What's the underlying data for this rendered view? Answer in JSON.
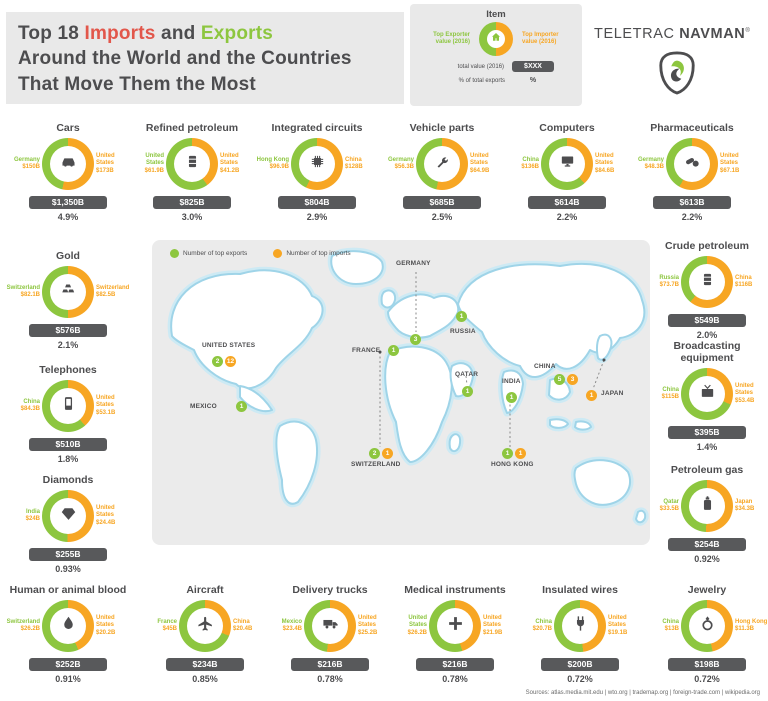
{
  "title": {
    "part_top18": "Top 18 ",
    "part_imports": "Imports",
    "part_and": " and ",
    "part_exports": "Exports",
    "line2": "Around the World and the Countries",
    "line3": "That Move Them the Most"
  },
  "legend": {
    "title": "Item",
    "exporter_label": "Top Exporter value (2016)",
    "importer_label": "Top Importer value (2016)",
    "total_label": "total value (2016)",
    "total_value": "$XXX",
    "percent_label": "% of total exports",
    "percent_value": "%"
  },
  "logo": {
    "part1": "TELETRAC",
    "part2": "NAVMAN",
    "reg": "®"
  },
  "map": {
    "legend_exports": "Number of top exports",
    "legend_imports": "Number of top imports",
    "countries": [
      {
        "name": "UNITED STATES",
        "badges": [
          {
            "type": "exports",
            "count": 2
          },
          {
            "type": "imports",
            "count": 12
          }
        ]
      },
      {
        "name": "MEXICO",
        "badges": [
          {
            "type": "exports",
            "count": 1
          }
        ]
      },
      {
        "name": "GERMANY",
        "badges": [
          {
            "type": "exports",
            "count": 3
          }
        ]
      },
      {
        "name": "FRANCE",
        "badges": [
          {
            "type": "exports",
            "count": 1
          }
        ]
      },
      {
        "name": "RUSSIA",
        "badges": [
          {
            "type": "exports",
            "count": 1
          }
        ]
      },
      {
        "name": "SWITZERLAND",
        "badges": [
          {
            "type": "exports",
            "count": 2
          },
          {
            "type": "imports",
            "count": 1
          }
        ]
      },
      {
        "name": "QATAR",
        "badges": [
          {
            "type": "exports",
            "count": 1
          }
        ]
      },
      {
        "name": "INDIA",
        "badges": [
          {
            "type": "exports",
            "count": 1
          }
        ]
      },
      {
        "name": "CHINA",
        "badges": [
          {
            "type": "exports",
            "count": 5
          },
          {
            "type": "imports",
            "count": 3
          }
        ]
      },
      {
        "name": "HONG KONG",
        "badges": [
          {
            "type": "exports",
            "count": 1
          },
          {
            "type": "imports",
            "count": 1
          }
        ]
      },
      {
        "name": "JAPAN",
        "badges": [
          {
            "type": "imports",
            "count": 1
          }
        ]
      }
    ]
  },
  "items": [
    {
      "name": "Cars",
      "icon": "car-icon",
      "exporter": {
        "country": "Germany",
        "value": "$150B"
      },
      "importer": {
        "country": "United States",
        "value": "$173B"
      },
      "export_b": 150,
      "import_b": 173,
      "total": "$1,350B",
      "percent": "4.9%"
    },
    {
      "name": "Refined petroleum",
      "icon": "oil-barrel-icon",
      "exporter": {
        "country": "United States",
        "value": "$61.9B"
      },
      "importer": {
        "country": "United States",
        "value": "$41.2B"
      },
      "export_b": 61.9,
      "import_b": 41.2,
      "total": "$825B",
      "percent": "3.0%"
    },
    {
      "name": "Integrated circuits",
      "icon": "chip-icon",
      "exporter": {
        "country": "Hong Kong",
        "value": "$96.9B"
      },
      "importer": {
        "country": "China",
        "value": "$128B"
      },
      "export_b": 96.9,
      "import_b": 128,
      "total": "$804B",
      "percent": "2.9%"
    },
    {
      "name": "Vehicle parts",
      "icon": "vehicle-parts-icon",
      "exporter": {
        "country": "Germany",
        "value": "$56.3B"
      },
      "importer": {
        "country": "United States",
        "value": "$64.9B"
      },
      "export_b": 56.3,
      "import_b": 64.9,
      "total": "$685B",
      "percent": "2.5%"
    },
    {
      "name": "Computers",
      "icon": "computer-icon",
      "exporter": {
        "country": "China",
        "value": "$136B"
      },
      "importer": {
        "country": "United States",
        "value": "$84.6B"
      },
      "export_b": 136,
      "import_b": 84.6,
      "total": "$614B",
      "percent": "2.2%"
    },
    {
      "name": "Pharmaceuticals",
      "icon": "pills-icon",
      "exporter": {
        "country": "Germany",
        "value": "$48.3B"
      },
      "importer": {
        "country": "United States",
        "value": "$67.1B"
      },
      "export_b": 48.3,
      "import_b": 67.1,
      "total": "$613B",
      "percent": "2.2%"
    },
    {
      "name": "Gold",
      "icon": "gold-icon",
      "exporter": {
        "country": "Switzerland",
        "value": "$82.1B"
      },
      "importer": {
        "country": "Switzerland",
        "value": "$82.5B"
      },
      "export_b": 82.1,
      "import_b": 82.5,
      "total": "$576B",
      "percent": "2.1%"
    },
    {
      "name": "Crude petroleum",
      "icon": "oil-barrel-icon",
      "exporter": {
        "country": "Russia",
        "value": "$73.7B"
      },
      "importer": {
        "country": "China",
        "value": "$116B"
      },
      "export_b": 73.7,
      "import_b": 116,
      "total": "$549B",
      "percent": "2.0%"
    },
    {
      "name": "Telephones",
      "icon": "phone-icon",
      "exporter": {
        "country": "China",
        "value": "$84.3B"
      },
      "importer": {
        "country": "United States",
        "value": "$53.1B"
      },
      "export_b": 84.3,
      "import_b": 53.1,
      "total": "$510B",
      "percent": "1.8%"
    },
    {
      "name": "Broadcasting equipment",
      "icon": "broadcast-icon",
      "exporter": {
        "country": "China",
        "value": "$115B"
      },
      "importer": {
        "country": "United States",
        "value": "$53.4B"
      },
      "export_b": 115,
      "import_b": 53.4,
      "total": "$395B",
      "percent": "1.4%"
    },
    {
      "name": "Diamonds",
      "icon": "diamond-icon",
      "exporter": {
        "country": "India",
        "value": "$24B"
      },
      "importer": {
        "country": "United States",
        "value": "$24.4B"
      },
      "export_b": 24,
      "import_b": 24.4,
      "total": "$255B",
      "percent": "0.93%"
    },
    {
      "name": "Petroleum gas",
      "icon": "gas-canister-icon",
      "exporter": {
        "country": "Qatar",
        "value": "$33.5B"
      },
      "importer": {
        "country": "Japan",
        "value": "$34.3B"
      },
      "export_b": 33.5,
      "import_b": 34.3,
      "total": "$254B",
      "percent": "0.92%"
    },
    {
      "name": "Human or animal blood",
      "icon": "blood-icon",
      "exporter": {
        "country": "Switzerland",
        "value": "$26.2B"
      },
      "importer": {
        "country": "United States",
        "value": "$20.2B"
      },
      "export_b": 26.2,
      "import_b": 20.2,
      "total": "$252B",
      "percent": "0.91%"
    },
    {
      "name": "Aircraft",
      "icon": "plane-icon",
      "exporter": {
        "country": "France",
        "value": "$45B"
      },
      "importer": {
        "country": "China",
        "value": "$20.4B"
      },
      "export_b": 45,
      "import_b": 20.4,
      "total": "$234B",
      "percent": "0.85%"
    },
    {
      "name": "Delivery trucks",
      "icon": "truck-icon",
      "exporter": {
        "country": "Mexico",
        "value": "$23.4B"
      },
      "importer": {
        "country": "United States",
        "value": "$25.2B"
      },
      "export_b": 23.4,
      "import_b": 25.2,
      "total": "$216B",
      "percent": "0.78%"
    },
    {
      "name": "Medical instruments",
      "icon": "medical-icon",
      "exporter": {
        "country": "United States",
        "value": "$26.2B"
      },
      "importer": {
        "country": "United States",
        "value": "$21.9B"
      },
      "export_b": 26.2,
      "import_b": 21.9,
      "total": "$216B",
      "percent": "0.78%"
    },
    {
      "name": "Insulated wires",
      "icon": "wire-icon",
      "exporter": {
        "country": "China",
        "value": "$20.7B"
      },
      "importer": {
        "country": "United States",
        "value": "$19.1B"
      },
      "export_b": 20.7,
      "import_b": 19.1,
      "total": "$200B",
      "percent": "0.72%"
    },
    {
      "name": "Jewelry",
      "icon": "ring-icon",
      "exporter": {
        "country": "China",
        "value": "$13B"
      },
      "importer": {
        "country": "Hong Kong",
        "value": "$11.3B"
      },
      "export_b": 13,
      "import_b": 11.3,
      "total": "$198B",
      "percent": "0.72%"
    }
  ],
  "chart_data": [
    {
      "type": "pie",
      "title": "Cars",
      "labels": [
        "Germany (top exporter)",
        "United States (top importer)"
      ],
      "values": [
        150,
        173
      ],
      "unit": "billion USD",
      "total": "$1,350B",
      "pct_of_total_exports": "4.9%"
    },
    {
      "type": "pie",
      "title": "Refined petroleum",
      "labels": [
        "United States (top exporter)",
        "United States (top importer)"
      ],
      "values": [
        61.9,
        41.2
      ],
      "unit": "billion USD",
      "total": "$825B",
      "pct_of_total_exports": "3.0%"
    },
    {
      "type": "pie",
      "title": "Integrated circuits",
      "labels": [
        "Hong Kong (top exporter)",
        "China (top importer)"
      ],
      "values": [
        96.9,
        128
      ],
      "unit": "billion USD",
      "total": "$804B",
      "pct_of_total_exports": "2.9%"
    },
    {
      "type": "pie",
      "title": "Vehicle parts",
      "labels": [
        "Germany (top exporter)",
        "United States (top importer)"
      ],
      "values": [
        56.3,
        64.9
      ],
      "unit": "billion USD",
      "total": "$685B",
      "pct_of_total_exports": "2.5%"
    },
    {
      "type": "pie",
      "title": "Computers",
      "labels": [
        "China (top exporter)",
        "United States (top importer)"
      ],
      "values": [
        136,
        84.6
      ],
      "unit": "billion USD",
      "total": "$614B",
      "pct_of_total_exports": "2.2%"
    },
    {
      "type": "pie",
      "title": "Pharmaceuticals",
      "labels": [
        "Germany (top exporter)",
        "United States (top importer)"
      ],
      "values": [
        48.3,
        67.1
      ],
      "unit": "billion USD",
      "total": "$613B",
      "pct_of_total_exports": "2.2%"
    },
    {
      "type": "pie",
      "title": "Gold",
      "labels": [
        "Switzerland (top exporter)",
        "Switzerland (top importer)"
      ],
      "values": [
        82.1,
        82.5
      ],
      "unit": "billion USD",
      "total": "$576B",
      "pct_of_total_exports": "2.1%"
    },
    {
      "type": "pie",
      "title": "Crude petroleum",
      "labels": [
        "Russia (top exporter)",
        "China (top importer)"
      ],
      "values": [
        73.7,
        116
      ],
      "unit": "billion USD",
      "total": "$549B",
      "pct_of_total_exports": "2.0%"
    },
    {
      "type": "pie",
      "title": "Telephones",
      "labels": [
        "China (top exporter)",
        "United States (top importer)"
      ],
      "values": [
        84.3,
        53.1
      ],
      "unit": "billion USD",
      "total": "$510B",
      "pct_of_total_exports": "1.8%"
    },
    {
      "type": "pie",
      "title": "Broadcasting equipment",
      "labels": [
        "China (top exporter)",
        "United States (top importer)"
      ],
      "values": [
        115,
        53.4
      ],
      "unit": "billion USD",
      "total": "$395B",
      "pct_of_total_exports": "1.4%"
    },
    {
      "type": "pie",
      "title": "Diamonds",
      "labels": [
        "India (top exporter)",
        "United States (top importer)"
      ],
      "values": [
        24,
        24.4
      ],
      "unit": "billion USD",
      "total": "$255B",
      "pct_of_total_exports": "0.93%"
    },
    {
      "type": "pie",
      "title": "Petroleum gas",
      "labels": [
        "Qatar (top exporter)",
        "Japan (top importer)"
      ],
      "values": [
        33.5,
        34.3
      ],
      "unit": "billion USD",
      "total": "$254B",
      "pct_of_total_exports": "0.92%"
    },
    {
      "type": "pie",
      "title": "Human or animal blood",
      "labels": [
        "Switzerland (top exporter)",
        "United States (top importer)"
      ],
      "values": [
        26.2,
        20.2
      ],
      "unit": "billion USD",
      "total": "$252B",
      "pct_of_total_exports": "0.91%"
    },
    {
      "type": "pie",
      "title": "Aircraft",
      "labels": [
        "France (top exporter)",
        "China (top importer)"
      ],
      "values": [
        45,
        20.4
      ],
      "unit": "billion USD",
      "total": "$234B",
      "pct_of_total_exports": "0.85%"
    },
    {
      "type": "pie",
      "title": "Delivery trucks",
      "labels": [
        "Mexico (top exporter)",
        "United States (top importer)"
      ],
      "values": [
        23.4,
        25.2
      ],
      "unit": "billion USD",
      "total": "$216B",
      "pct_of_total_exports": "0.78%"
    },
    {
      "type": "pie",
      "title": "Medical instruments",
      "labels": [
        "United States (top exporter)",
        "United States (top importer)"
      ],
      "values": [
        26.2,
        21.9
      ],
      "unit": "billion USD",
      "total": "$216B",
      "pct_of_total_exports": "0.78%"
    },
    {
      "type": "pie",
      "title": "Insulated wires",
      "labels": [
        "China (top exporter)",
        "United States (top importer)"
      ],
      "values": [
        20.7,
        19.1
      ],
      "unit": "billion USD",
      "total": "$200B",
      "pct_of_total_exports": "0.72%"
    },
    {
      "type": "pie",
      "title": "Jewelry",
      "labels": [
        "China (top exporter)",
        "Hong Kong (top importer)"
      ],
      "values": [
        13,
        11.3
      ],
      "unit": "billion USD",
      "total": "$198B",
      "pct_of_total_exports": "0.72%"
    }
  ],
  "sources": "Sources: atlas.media.mit.edu  |  wto.org  |  trademap.org  |  foreign-trade.com  |  wikipedia.org",
  "colors": {
    "green": "#8dc63f",
    "yellow": "#f7a623",
    "dark": "#4d4d4f",
    "red": "#e2574b",
    "pill": "#58595b",
    "panel": "#e9e9e9",
    "water": "#a2d9ec"
  }
}
